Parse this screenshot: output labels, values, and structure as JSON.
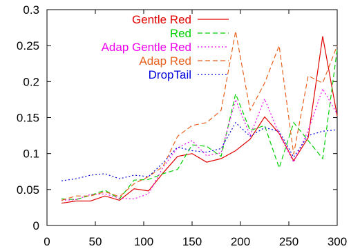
{
  "chart_data": {
    "type": "line",
    "title": "",
    "xlabel": "",
    "ylabel": "",
    "xlim": [
      0,
      300
    ],
    "ylim": [
      0,
      0.3
    ],
    "x_ticks": [
      0,
      50,
      100,
      150,
      200,
      250,
      300
    ],
    "x_tick_labels": [
      "0",
      "50",
      "100",
      "150",
      "200",
      "250",
      "300"
    ],
    "y_ticks": [
      0,
      0.05,
      0.1,
      0.15,
      0.2,
      0.25,
      0.3
    ],
    "y_tick_labels": [
      "0",
      "0.05",
      "0.1",
      "0.15",
      "0.2",
      "0.25",
      "0.3"
    ],
    "grid": false,
    "legend_position": "top-left",
    "x": [
      15,
      30,
      45,
      60,
      75,
      90,
      105,
      120,
      135,
      150,
      165,
      180,
      195,
      210,
      225,
      240,
      255,
      270,
      285,
      300
    ],
    "series": [
      {
        "name": "Gentle Red",
        "color": "#e00000",
        "dash": "solid",
        "values": [
          0.031,
          0.034,
          0.034,
          0.041,
          0.035,
          0.051,
          0.048,
          0.073,
          0.096,
          0.1,
          0.088,
          0.093,
          0.104,
          0.12,
          0.151,
          0.128,
          0.09,
          0.122,
          0.263,
          0.152
        ]
      },
      {
        "name": "Red",
        "color": "#00d000",
        "dash": "dashed",
        "values": [
          0.037,
          0.036,
          0.042,
          0.049,
          0.037,
          0.063,
          0.064,
          0.072,
          0.078,
          0.112,
          0.11,
          0.096,
          0.183,
          0.132,
          0.139,
          0.08,
          0.143,
          0.118,
          0.093,
          0.245
        ]
      },
      {
        "name": "Adap Gentle Red",
        "color": "#ee00ee",
        "dash": "dotted",
        "values": [
          0.035,
          0.036,
          0.043,
          0.044,
          0.038,
          0.037,
          0.044,
          0.081,
          0.108,
          0.118,
          0.097,
          0.101,
          0.175,
          0.125,
          0.176,
          0.127,
          0.088,
          0.132,
          0.19,
          0.155
        ]
      },
      {
        "name": "Adap Red",
        "color": "#e8621e",
        "dash": "dashed",
        "values": [
          0.035,
          0.041,
          0.041,
          0.047,
          0.04,
          0.058,
          0.068,
          0.082,
          0.124,
          0.139,
          0.143,
          0.16,
          0.27,
          0.16,
          0.198,
          0.25,
          0.099,
          0.208,
          0.198,
          0.25
        ]
      },
      {
        "name": "DropTail",
        "color": "#0000dd",
        "dash": "dotted",
        "values": [
          0.062,
          0.065,
          0.07,
          0.072,
          0.065,
          0.07,
          0.068,
          0.087,
          0.109,
          0.104,
          0.102,
          0.107,
          0.143,
          0.124,
          0.136,
          0.131,
          0.095,
          0.125,
          0.131,
          0.133
        ]
      }
    ]
  }
}
